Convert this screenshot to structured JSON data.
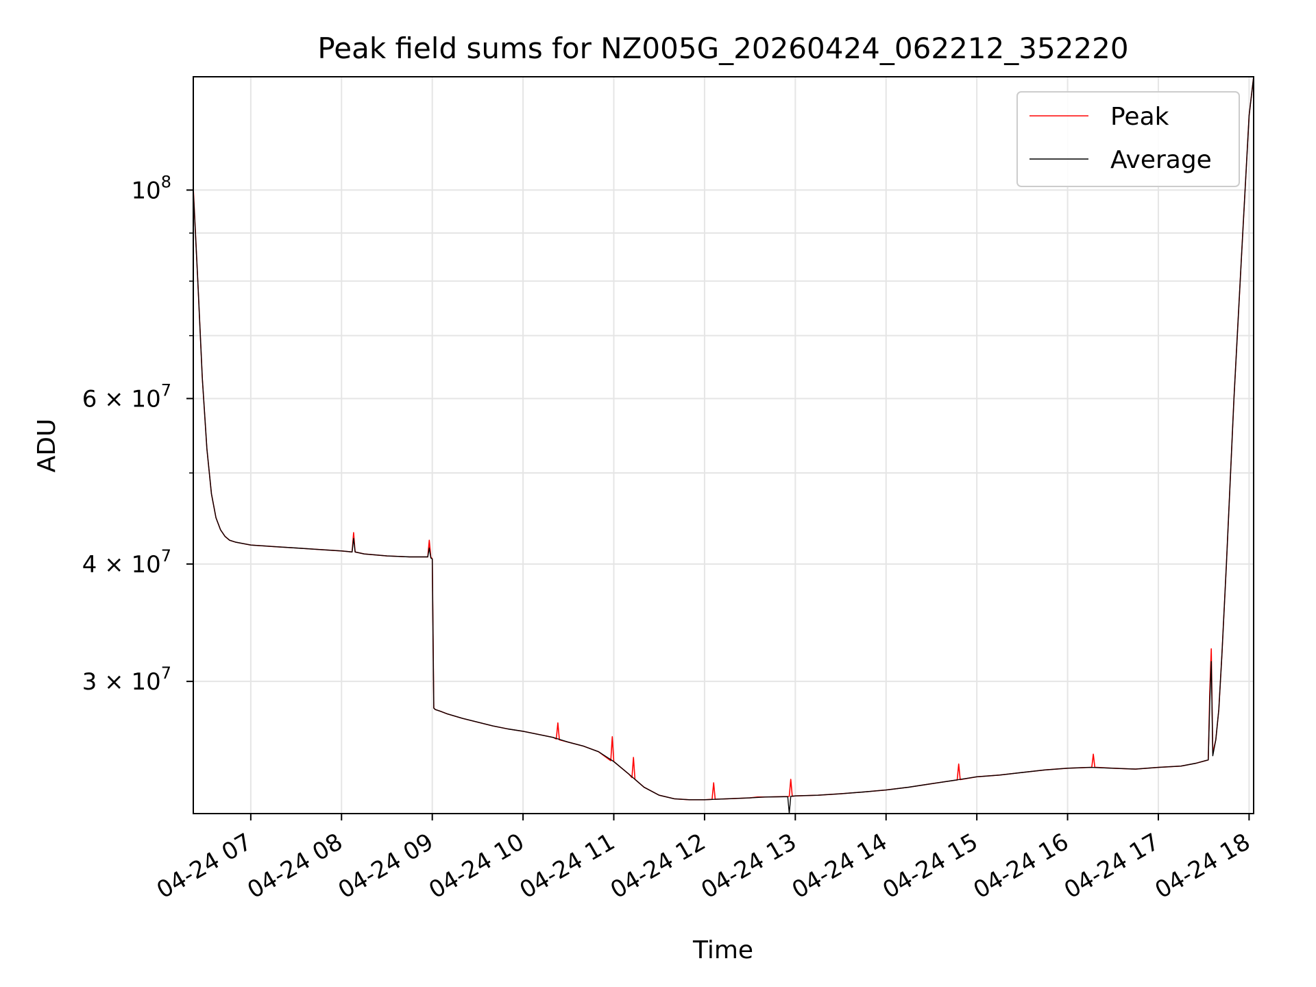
{
  "chart_data": {
    "type": "line",
    "title": "Peak field sums for NZ005G_20260424_062212_352220",
    "xlabel": "Time",
    "ylabel": "ADU",
    "yscale": "log",
    "grid": true,
    "legend_position": "top-right",
    "xlim": [
      "04-24 06:22",
      "04-24 18:03"
    ],
    "ylim": [
      21700000,
      132000000
    ],
    "x_ticks": [
      "04-24 07",
      "04-24 08",
      "04-24 09",
      "04-24 10",
      "04-24 11",
      "04-24 12",
      "04-24 13",
      "04-24 14",
      "04-24 15",
      "04-24 16",
      "04-24 17",
      "04-24 18"
    ],
    "y_ticks": [
      {
        "value": 100000000,
        "base": "10",
        "exp": "8"
      },
      {
        "value": 60000000,
        "base": "6 × 10",
        "exp": "7"
      },
      {
        "value": 40000000,
        "base": "4 × 10",
        "exp": "7"
      },
      {
        "value": 30000000,
        "base": "3 × 10",
        "exp": "7"
      }
    ],
    "series": [
      {
        "name": "Peak",
        "color": "#ff0000",
        "x": [
          "06:22",
          "06:25",
          "06:28",
          "06:31",
          "06:34",
          "06:37",
          "06:40",
          "06:43",
          "06:46",
          "06:50",
          "06:55",
          "07:00",
          "07:15",
          "07:30",
          "07:45",
          "08:00",
          "08:07",
          "08:08",
          "08:09",
          "08:15",
          "08:30",
          "08:45",
          "08:57",
          "08:58",
          "08:59",
          "09:00",
          "09:01",
          "09:02",
          "09:05",
          "09:10",
          "09:20",
          "09:30",
          "09:40",
          "09:50",
          "10:00",
          "10:10",
          "10:20",
          "10:22",
          "10:23",
          "10:24",
          "10:30",
          "10:40",
          "10:50",
          "10:58",
          "10:59",
          "11:00",
          "11:10",
          "11:12",
          "11:13",
          "11:14",
          "11:20",
          "11:30",
          "11:40",
          "11:50",
          "12:00",
          "12:05",
          "12:06",
          "12:07",
          "12:15",
          "12:30",
          "12:35",
          "12:40",
          "12:56",
          "12:57",
          "12:58",
          "13:00",
          "13:15",
          "13:30",
          "13:45",
          "14:00",
          "14:15",
          "14:30",
          "14:45",
          "14:47",
          "14:48",
          "14:49",
          "15:00",
          "15:15",
          "15:30",
          "15:45",
          "16:00",
          "16:15",
          "16:16",
          "16:17",
          "16:18",
          "16:30",
          "16:45",
          "17:00",
          "17:15",
          "17:25",
          "17:33",
          "17:34",
          "17:35",
          "17:36",
          "17:38",
          "17:40",
          "17:42",
          "17:45",
          "17:50",
          "17:55",
          "18:00",
          "18:03"
        ],
        "values": [
          100500000,
          80000000,
          63000000,
          53000000,
          47500000,
          44800000,
          43500000,
          42800000,
          42400000,
          42200000,
          42050000,
          41900000,
          41750000,
          41600000,
          41450000,
          41300000,
          41200000,
          43200000,
          41200000,
          41000000,
          40800000,
          40700000,
          40700000,
          42400000,
          40700000,
          40500000,
          28100000,
          28000000,
          27900000,
          27700000,
          27400000,
          27150000,
          26900000,
          26700000,
          26550000,
          26350000,
          26150000,
          26050000,
          27100000,
          26000000,
          25850000,
          25600000,
          25250000,
          24700000,
          26200000,
          24650000,
          23900000,
          23700000,
          24900000,
          23600000,
          23150000,
          22700000,
          22500000,
          22450000,
          22450000,
          22470000,
          23400000,
          22480000,
          22500000,
          22550000,
          22600000,
          22600000,
          22630000,
          23600000,
          22640000,
          22660000,
          22700000,
          22780000,
          22880000,
          22990000,
          23150000,
          23350000,
          23540000,
          23560000,
          24500000,
          23580000,
          23750000,
          23850000,
          24000000,
          24150000,
          24250000,
          24300000,
          24310000,
          25100000,
          24310000,
          24250000,
          24200000,
          24300000,
          24380000,
          24550000,
          24750000,
          29200000,
          32500000,
          25200000,
          26000000,
          28000000,
          32000000,
          40000000,
          60000000,
          85000000,
          120000000,
          132000000
        ]
      },
      {
        "name": "Average",
        "color": "#000000",
        "x": [
          "06:22",
          "06:25",
          "06:28",
          "06:31",
          "06:34",
          "06:37",
          "06:40",
          "06:43",
          "06:46",
          "06:50",
          "06:55",
          "07:00",
          "07:15",
          "07:30",
          "07:45",
          "08:00",
          "08:07",
          "08:08",
          "08:09",
          "08:15",
          "08:30",
          "08:45",
          "08:57",
          "08:58",
          "08:59",
          "09:00",
          "09:01",
          "09:02",
          "09:05",
          "09:10",
          "09:20",
          "09:30",
          "09:40",
          "09:50",
          "10:00",
          "10:10",
          "10:20",
          "10:30",
          "10:40",
          "10:50",
          "11:00",
          "11:10",
          "11:20",
          "11:30",
          "11:40",
          "11:50",
          "12:00",
          "12:15",
          "12:30",
          "12:40",
          "12:55",
          "12:56",
          "12:57",
          "13:00",
          "13:15",
          "13:30",
          "13:45",
          "14:00",
          "14:15",
          "14:30",
          "14:45",
          "15:00",
          "15:15",
          "15:30",
          "15:45",
          "16:00",
          "16:15",
          "16:30",
          "16:45",
          "17:00",
          "17:15",
          "17:25",
          "17:33",
          "17:34",
          "17:35",
          "17:36",
          "17:38",
          "17:40",
          "17:42",
          "17:45",
          "17:50",
          "17:55",
          "18:00",
          "18:03"
        ],
        "values": [
          100000000,
          80000000,
          63000000,
          53000000,
          47500000,
          44800000,
          43500000,
          42800000,
          42400000,
          42200000,
          42050000,
          41900000,
          41750000,
          41600000,
          41450000,
          41300000,
          41200000,
          42600000,
          41200000,
          41000000,
          40800000,
          40700000,
          40700000,
          41600000,
          40600000,
          40500000,
          28100000,
          28000000,
          27900000,
          27700000,
          27400000,
          27150000,
          26900000,
          26700000,
          26550000,
          26350000,
          26150000,
          25850000,
          25600000,
          25250000,
          24650000,
          23900000,
          23150000,
          22700000,
          22500000,
          22450000,
          22450000,
          22500000,
          22550000,
          22600000,
          22620000,
          21700000,
          22640000,
          22660000,
          22700000,
          22780000,
          22880000,
          22990000,
          23150000,
          23350000,
          23540000,
          23750000,
          23850000,
          24000000,
          24150000,
          24250000,
          24300000,
          24250000,
          24200000,
          24300000,
          24380000,
          24550000,
          24750000,
          28500000,
          31500000,
          25000000,
          26000000,
          28000000,
          32000000,
          40000000,
          60000000,
          85000000,
          120000000,
          132000000
        ]
      }
    ]
  }
}
